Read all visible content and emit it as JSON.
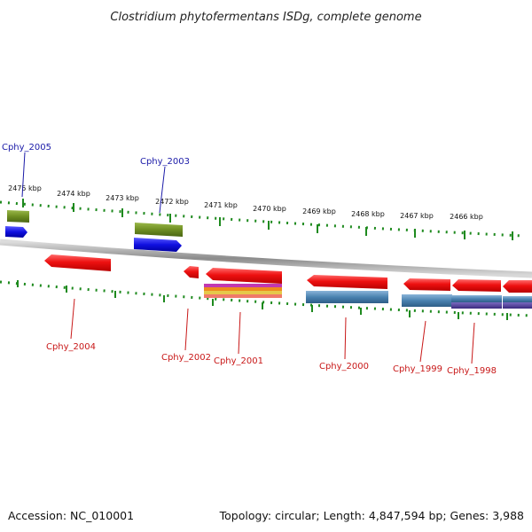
{
  "title": "Clostridium phytofermentans ISDg, complete genome",
  "footer": {
    "accession": "Accession: NC_010001",
    "summary": "Topology: circular; Length: 4,847,594 bp; Genes: 3,988"
  },
  "kbp_labels": [
    "2475 kbp",
    "2474 kbp",
    "2473 kbp",
    "2472 kbp",
    "2471 kbp",
    "2470 kbp",
    "2469 kbp",
    "2468 kbp",
    "2467 kbp",
    "2466 kbp"
  ],
  "gene_labels": {
    "top": [
      "Cphy_2005",
      "Cphy_2003"
    ],
    "bottom": [
      "Cphy_2004",
      "Cphy_2002",
      "Cphy_2001",
      "Cphy_2000",
      "Cphy_1999",
      "Cphy_1998"
    ]
  },
  "colors": {
    "gene_red": "#ee1111",
    "gene_green": "#6e8e22",
    "gene_blue": "#1010e0",
    "steel_blue": "#4a82b0",
    "purple": "#4a3a8e",
    "tick_green": "#1e8a1e",
    "backbone": "#888888",
    "label_blue": "#1a1aa8",
    "label_red": "#c81818"
  }
}
